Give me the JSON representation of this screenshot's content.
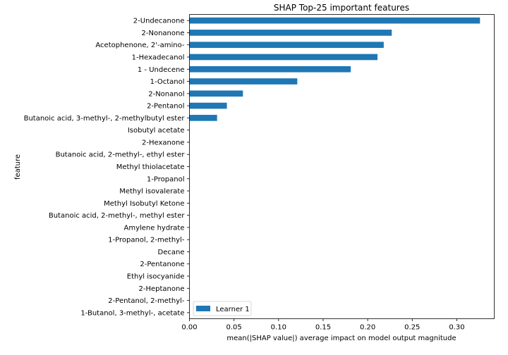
{
  "chart_data": {
    "type": "bar",
    "orientation": "horizontal",
    "title": "SHAP Top-25 important features",
    "xlabel": "mean(|SHAP value|) average impact on model output magnitude",
    "ylabel": "feature",
    "xlim": [
      0,
      0.342
    ],
    "xticks": [
      0.0,
      0.05,
      0.1,
      0.15,
      0.2,
      0.25,
      0.3
    ],
    "xtick_labels": [
      "0.00",
      "0.05",
      "0.10",
      "0.15",
      "0.20",
      "0.25",
      "0.30"
    ],
    "categories": [
      "2-Undecanone",
      "2-Nonanone ",
      "Acetophenone, 2'-amino-",
      "1-Hexadecanol",
      "1 - Undecene",
      "1-Octanol",
      "2-Nonanol",
      "2-Pentanol",
      "Butanoic acid, 3-methyl-, 2-methylbutyl ester",
      "Isobutyl acetate",
      "2-Hexanone",
      "Butanoic acid, 2-methyl-, ethyl ester",
      "Methyl thiolacetate",
      "1-Propanol ",
      "Methyl isovalerate",
      "Methyl Isobutyl Ketone",
      "Butanoic acid, 2-methyl-, methyl ester",
      "Amylene hydrate",
      "1-Propanol, 2-methyl-",
      "Decane",
      "2-Pentanone",
      "Ethyl isocyanide",
      "2-Heptanone",
      "2-Pentanol, 2-methyl-",
      "1-Butanol, 3-methyl-, acetate"
    ],
    "series": [
      {
        "name": "Learner 1",
        "color": "#1f77b4",
        "values": [
          0.326,
          0.227,
          0.218,
          0.211,
          0.181,
          0.121,
          0.06,
          0.042,
          0.031,
          0,
          0,
          0,
          0,
          0,
          0,
          0,
          0,
          0,
          0,
          0,
          0,
          0,
          0,
          0,
          0
        ]
      }
    ],
    "legend_position": "lower-left",
    "grid": false
  }
}
